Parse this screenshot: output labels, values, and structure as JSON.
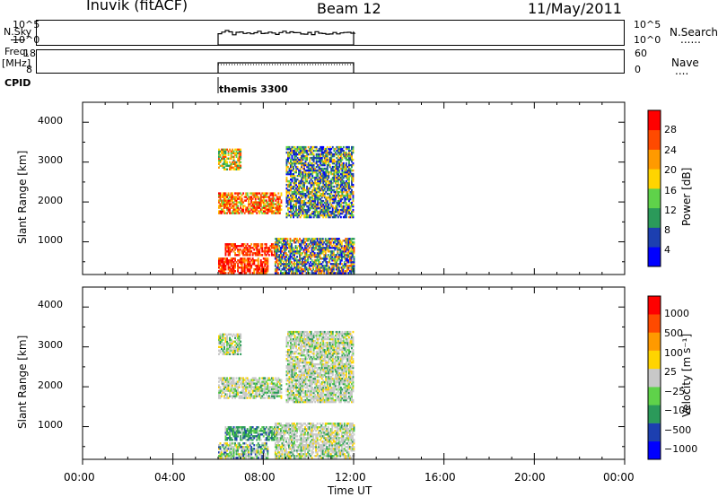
{
  "header": {
    "station": "Inuvik (fitACF)",
    "beam": "Beam 12",
    "date": "11/May/2011"
  },
  "strip_labels": {
    "nsky": "N.Sky",
    "nsky_ticks": [
      "10^5",
      "10^0"
    ],
    "nsky_right_ticks": [
      "10^5",
      "10^0"
    ],
    "nsearch": "N.Search",
    "nsearch_line": "......",
    "freq": "Freq.",
    "freq_unit": "[MHz]",
    "freq_ticks": [
      "18",
      "8"
    ],
    "freq_right_ticks": [
      "60",
      "0"
    ],
    "nave": "Nave",
    "nave_line": "....",
    "cpid": "CPID",
    "cpid_value": "themis 3300"
  },
  "time_axis": {
    "label": "Time UT",
    "ticks": [
      "00:00",
      "04:00",
      "08:00",
      "12:00",
      "16:00",
      "20:00",
      "00:00"
    ]
  },
  "chart_data": [
    {
      "type": "heatmap",
      "name": "power",
      "ylabel": "Slant Range [km]",
      "yticks": [
        "4000",
        "3000",
        "2000",
        "1000"
      ],
      "ylim": [
        180,
        4500
      ],
      "xlim": [
        "00:00",
        "24:00"
      ],
      "data_time_range": [
        "06:00",
        "12:00"
      ],
      "colorbar": {
        "label": "Power [dB]",
        "ticks": [
          "28",
          "24",
          "20",
          "16",
          "12",
          "8",
          "4"
        ],
        "range": [
          0,
          32
        ],
        "colors": [
          "#0000ff",
          "#1c3fb0",
          "#2b9a5a",
          "#5fd24a",
          "#ffd400",
          "#ff9a00",
          "#ff4a00",
          "#ff0000"
        ]
      },
      "echo_regions": [
        {
          "time": [
            6.0,
            8.2
          ],
          "range": [
            200,
            600
          ],
          "level": "high"
        },
        {
          "time": [
            6.3,
            8.6
          ],
          "range": [
            650,
            950
          ],
          "level": "high"
        },
        {
          "time": [
            6.0,
            8.8
          ],
          "range": [
            1700,
            2200
          ],
          "level": "mid-high"
        },
        {
          "time": [
            6.0,
            7.0
          ],
          "range": [
            2800,
            3300
          ],
          "level": "mid"
        },
        {
          "time": [
            8.5,
            12.0
          ],
          "range": [
            200,
            1100
          ],
          "level": "mixed"
        },
        {
          "time": [
            9.0,
            12.0
          ],
          "range": [
            1600,
            3400
          ],
          "level": "low-mid"
        }
      ]
    },
    {
      "type": "heatmap",
      "name": "velocity",
      "ylabel": "Slant Range [km]",
      "yticks": [
        "4000",
        "3000",
        "2000",
        "1000"
      ],
      "ylim": [
        180,
        4500
      ],
      "xlim": [
        "00:00",
        "24:00"
      ],
      "data_time_range": [
        "06:00",
        "12:00"
      ],
      "colorbar": {
        "label": "Velocity [m s⁻¹]",
        "ticks": [
          "1000",
          "500",
          "100",
          "25",
          "−25",
          "−100",
          "−500",
          "−1000"
        ],
        "colors": [
          "#0000ff",
          "#1c3fb0",
          "#2b9a5a",
          "#5fd24a",
          "#c8c8c8",
          "#ffd400",
          "#ff9a00",
          "#ff4a00",
          "#ff0000"
        ]
      },
      "echo_regions": [
        {
          "time": [
            6.0,
            8.2
          ],
          "range": [
            200,
            600
          ],
          "level": "low"
        },
        {
          "time": [
            6.3,
            8.6
          ],
          "range": [
            650,
            1000
          ],
          "level": "positive"
        },
        {
          "time": [
            6.0,
            8.8
          ],
          "range": [
            1700,
            2200
          ],
          "level": "near-zero"
        },
        {
          "time": [
            6.0,
            7.0
          ],
          "range": [
            2800,
            3300
          ],
          "level": "near-zero"
        },
        {
          "time": [
            8.5,
            12.0
          ],
          "range": [
            200,
            1100
          ],
          "level": "near-zero"
        },
        {
          "time": [
            9.0,
            12.0
          ],
          "range": [
            1600,
            3400
          ],
          "level": "near-zero"
        }
      ]
    }
  ]
}
